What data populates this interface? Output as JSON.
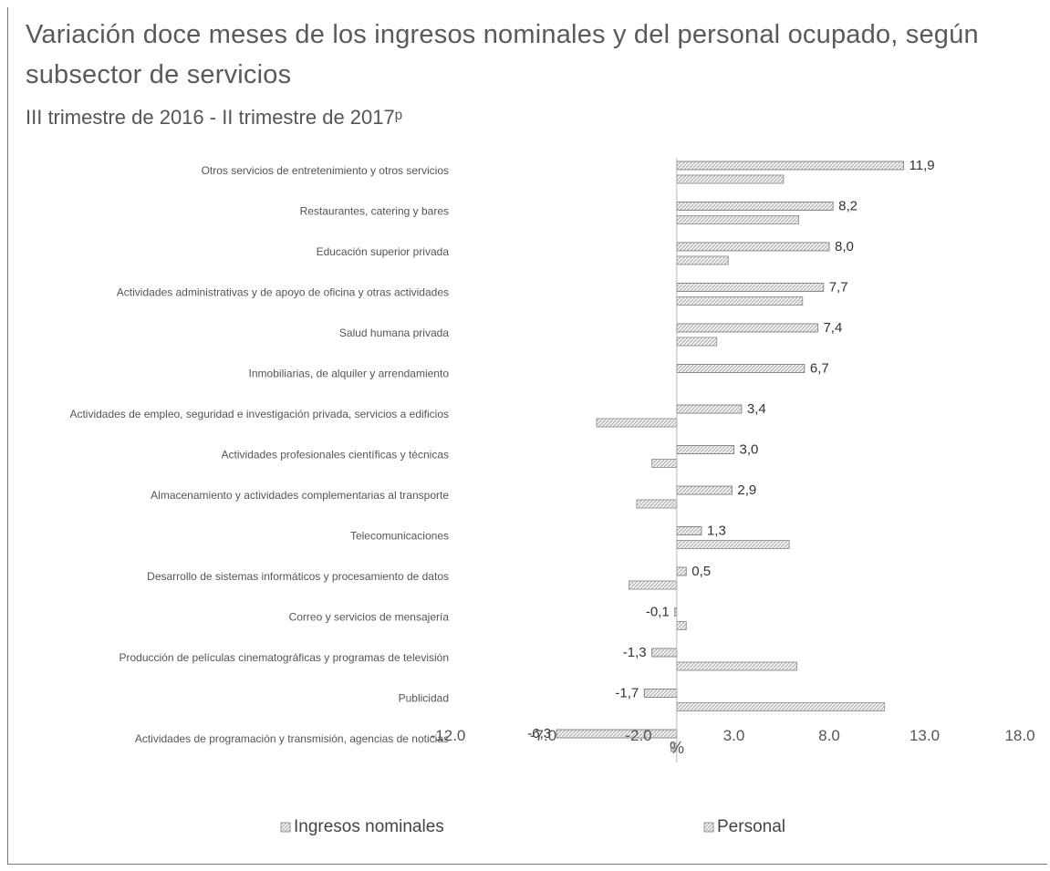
{
  "chart_data": {
    "type": "bar",
    "title": "Variación doce meses de los ingresos nominales y del personal ocupado, según subsector de servicios",
    "subtitle": "III trimestre de 2016 - II trimestre de 2017ᵖ",
    "xlabel": "%",
    "xlim": [
      -12,
      18
    ],
    "xticks": [
      "-12.0",
      "-7.0",
      "-2.0",
      "3.0",
      "8.0",
      "13.0",
      "18.0"
    ],
    "orientation": "horizontal",
    "grid": false,
    "legend_position": "bottom",
    "categories": [
      "Otros servicios de entretenimiento y otros servicios",
      "Restaurantes, catering y bares",
      "Educación superior privada",
      "Actividades administrativas y de apoyo de oficina y otras actividades",
      "Salud humana privada",
      "Inmobiliarias, de alquiler y arrendamiento",
      "Actividades de empleo, seguridad e investigación privada, servicios a edificios",
      "Actividades profesionales científicas y técnicas",
      "Almacenamiento y actividades complementarias al transporte",
      "Telecomunicaciones",
      "Desarrollo de sistemas informáticos y procesamiento de datos",
      "Correo y servicios de mensajería",
      "Producción de películas cinematográficas y programas de televisión",
      "Publicidad",
      "Actividades de programación y transmisión, agencias de noticias"
    ],
    "series": [
      {
        "name": "Ingresos nominales",
        "values": [
          11.9,
          8.2,
          8.0,
          7.7,
          7.4,
          6.7,
          3.4,
          3.0,
          2.9,
          1.3,
          0.5,
          -0.1,
          -1.3,
          -1.7,
          -6.3
        ],
        "labels": [
          "11,9",
          "8,2",
          "8,0",
          "7,7",
          "7,4",
          "6,7",
          "3,4",
          "3,0",
          "2,9",
          "1,3",
          "0,5",
          "-0,1",
          "-1,3",
          "-1,7",
          "-6,3"
        ]
      },
      {
        "name": "Personal",
        "values": [
          5.6,
          6.4,
          2.7,
          6.6,
          2.1,
          null,
          -4.2,
          -1.3,
          -2.1,
          5.9,
          -2.5,
          0.5,
          6.3,
          10.9,
          -0.3
        ]
      }
    ],
    "colors": {
      "ingresos": "#9a9a9a",
      "personal": "#b5b5b5",
      "hatch": "#e6e6e6",
      "label": "#333333",
      "axis": "#555555"
    }
  }
}
